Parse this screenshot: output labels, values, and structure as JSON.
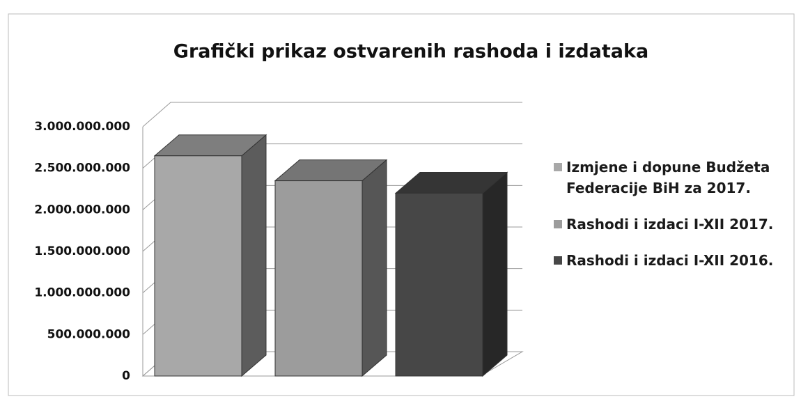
{
  "chart_data": {
    "type": "bar",
    "title": "Grafički prikaz ostvarenih rashoda i izdataka",
    "categories": [
      null
    ],
    "series": [
      {
        "name": "Izmjene i dopune  Budžeta Federacije BiH za 2017.",
        "color": "#a8a8a8",
        "values": [
          2650000000
        ]
      },
      {
        "name": "Rashodi i izdaci I-XII 2017.",
        "color": "#9c9c9c",
        "values": [
          2350000000
        ]
      },
      {
        "name": "Rashodi i izdaci I-XII 2016.",
        "color": "#474747",
        "values": [
          2200000000
        ]
      }
    ],
    "ylim": [
      0,
      3000000000
    ],
    "yticks": [
      0,
      {
        "value": 500000000,
        "label": "500.000.000"
      },
      {
        "value": 1000000000,
        "label": "1.000.000.000"
      },
      {
        "value": 1500000000,
        "label": "1.500.000.000"
      },
      {
        "value": 2000000000,
        "label": "2.000.000.000"
      },
      {
        "value": 2500000000,
        "label": "2.500.000.000"
      },
      {
        "value": 3000000000,
        "label": "3.000.000.000"
      }
    ],
    "grid": true,
    "legend": "right"
  }
}
